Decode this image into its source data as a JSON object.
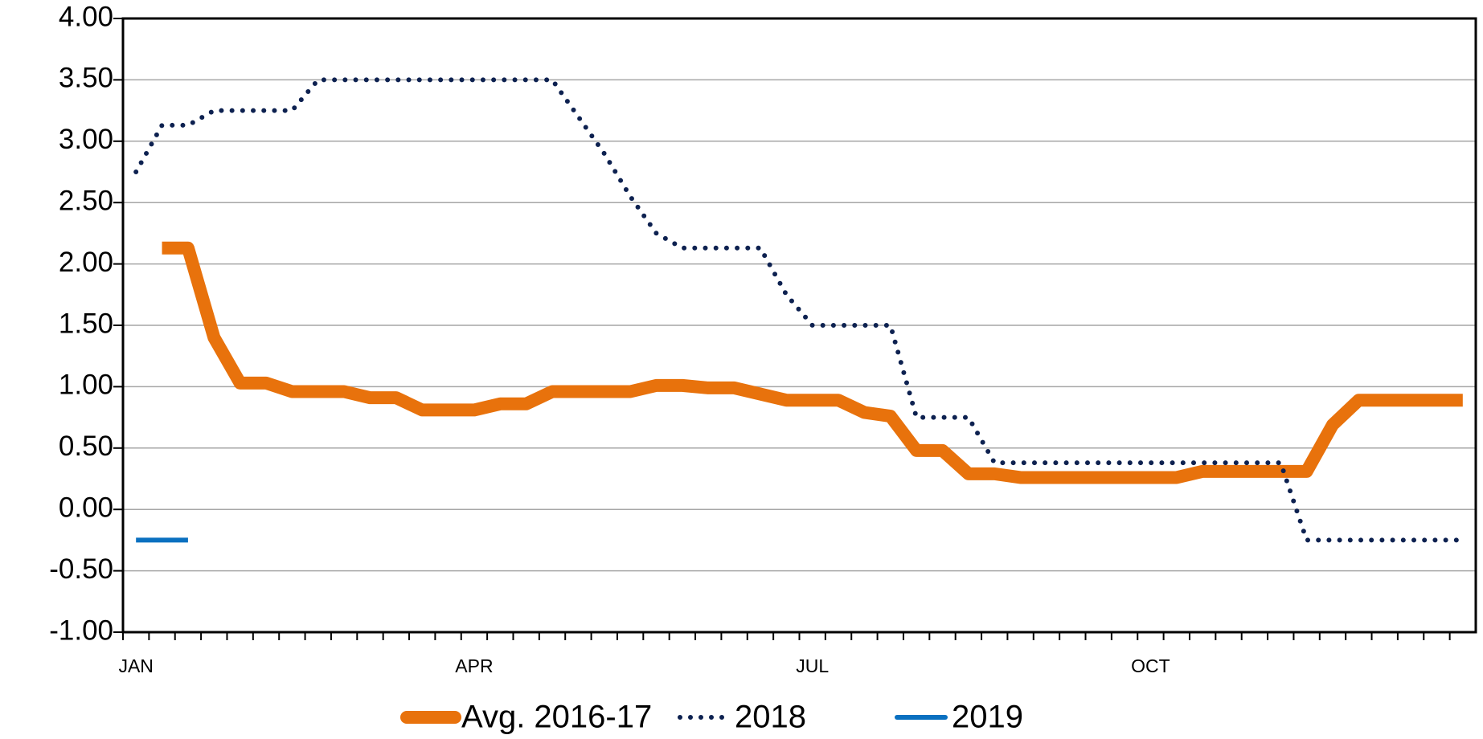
{
  "chart_data": {
    "type": "line",
    "categories": [
      "JAN",
      null,
      null,
      null,
      null,
      null,
      null,
      null,
      null,
      null,
      null,
      null,
      null,
      "APR",
      null,
      null,
      null,
      null,
      null,
      null,
      null,
      null,
      null,
      null,
      null,
      null,
      "JUL",
      null,
      null,
      null,
      null,
      null,
      null,
      null,
      null,
      null,
      null,
      null,
      null,
      "OCT",
      null,
      null,
      null,
      null,
      null,
      null,
      null,
      null,
      null,
      null,
      null,
      null
    ],
    "series": [
      {
        "name": "Avg. 2016-17",
        "color": "#e8720c",
        "style": "solid",
        "width": 16,
        "values": [
          null,
          2.13,
          2.13,
          1.4,
          1.03,
          1.03,
          0.96,
          0.96,
          0.96,
          0.91,
          0.91,
          0.81,
          0.81,
          0.81,
          0.86,
          0.86,
          0.96,
          0.96,
          0.96,
          0.96,
          1.01,
          1.01,
          0.99,
          0.99,
          0.94,
          0.89,
          0.89,
          0.89,
          0.79,
          0.76,
          0.48,
          0.48,
          0.29,
          0.29,
          0.26,
          0.26,
          0.26,
          0.26,
          0.26,
          0.26,
          0.26,
          0.31,
          0.31,
          0.31,
          0.31,
          0.31,
          0.69,
          0.89,
          0.89,
          0.89,
          0.89,
          0.89
        ]
      },
      {
        "name": "2018",
        "color": "#0d2150",
        "style": "dotted",
        "width": 6,
        "values": [
          2.75,
          3.13,
          3.13,
          3.25,
          3.25,
          3.25,
          3.25,
          3.5,
          3.5,
          3.5,
          3.5,
          3.5,
          3.5,
          3.5,
          3.5,
          3.5,
          3.5,
          3.2,
          2.9,
          2.55,
          2.25,
          2.13,
          2.13,
          2.13,
          2.13,
          1.75,
          1.5,
          1.5,
          1.5,
          1.5,
          0.75,
          0.75,
          0.75,
          0.38,
          0.38,
          0.38,
          0.38,
          0.38,
          0.38,
          0.38,
          0.38,
          0.38,
          0.38,
          0.38,
          0.38,
          -0.25,
          -0.25,
          -0.25,
          -0.25,
          -0.25,
          -0.25,
          -0.25
        ]
      },
      {
        "name": "2019",
        "color": "#0a70c0",
        "style": "solid",
        "width": 6,
        "values": [
          -0.25,
          -0.25,
          -0.25,
          null,
          null,
          null,
          null,
          null,
          null,
          null,
          null,
          null,
          null,
          null,
          null,
          null,
          null,
          null,
          null,
          null,
          null,
          null,
          null,
          null,
          null,
          null,
          null,
          null,
          null,
          null,
          null,
          null,
          null,
          null,
          null,
          null,
          null,
          null,
          null,
          null,
          null,
          null,
          null,
          null,
          null,
          null,
          null,
          null,
          null,
          null,
          null,
          null
        ]
      }
    ],
    "ylim": [
      -1,
      4
    ],
    "yticks": [
      {
        "value": -1,
        "label": "-1.00"
      },
      {
        "value": -0.5,
        "label": "-0.50"
      },
      {
        "value": 0,
        "label": "0.00"
      },
      {
        "value": 0.5,
        "label": "0.50"
      },
      {
        "value": 1,
        "label": "1.00"
      },
      {
        "value": 1.5,
        "label": "1.50"
      },
      {
        "value": 2,
        "label": "2.00"
      },
      {
        "value": 2.5,
        "label": "2.50"
      },
      {
        "value": 3,
        "label": "3.00"
      },
      {
        "value": 3.5,
        "label": "3.50"
      },
      {
        "value": 4,
        "label": "4.00"
      }
    ],
    "grid": true,
    "legend": "bottom"
  }
}
